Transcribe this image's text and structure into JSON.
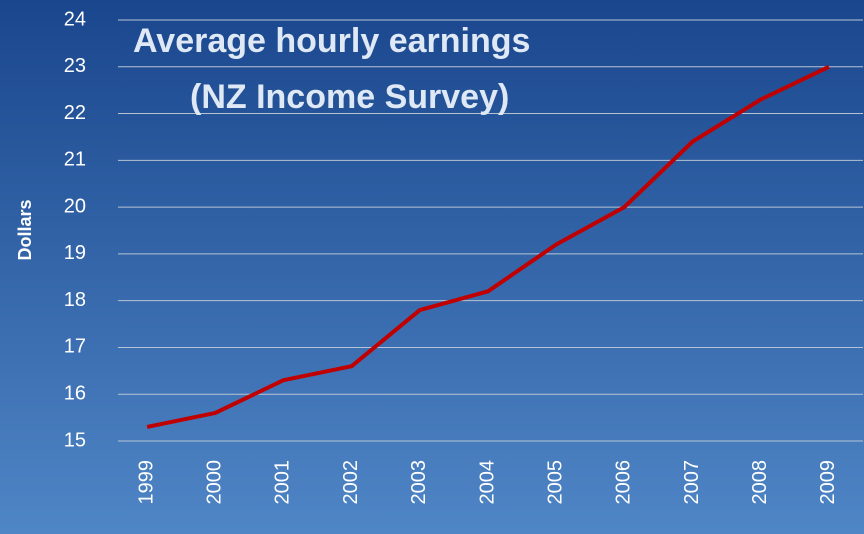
{
  "chart_data": {
    "type": "line",
    "title_lines": [
      "Average hourly earnings",
      "(NZ Income Survey)"
    ],
    "y_label": "Dollars",
    "categories": [
      "1999",
      "2000",
      "2001",
      "2002",
      "2003",
      "2004",
      "2005",
      "2006",
      "2007",
      "2008",
      "2009"
    ],
    "series": [
      {
        "name": "Average hourly earnings",
        "color": "#c00000",
        "values": [
          15.3,
          15.6,
          16.3,
          16.6,
          17.8,
          18.2,
          19.2,
          20.0,
          21.4,
          22.3,
          23.0
        ]
      }
    ],
    "ylim": [
      15,
      24
    ],
    "yticks": [
      15,
      16,
      17,
      18,
      19,
      20,
      21,
      22,
      23,
      24
    ],
    "grid": true
  }
}
